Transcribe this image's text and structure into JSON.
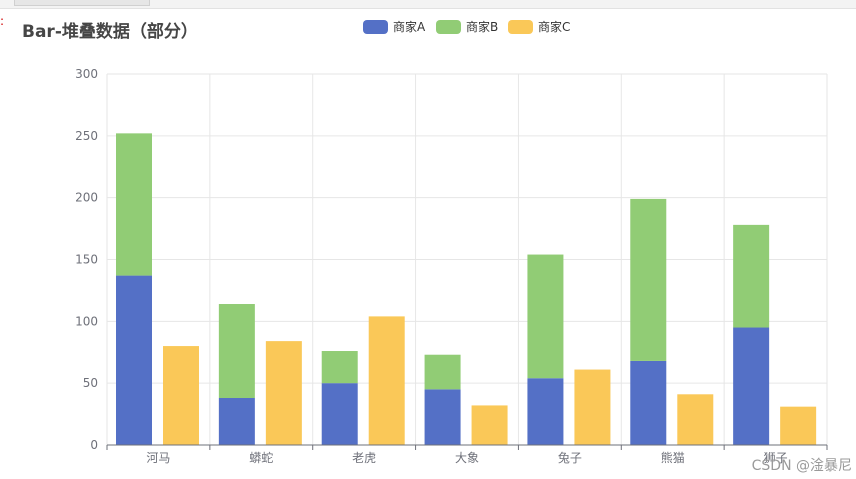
{
  "marker": ":",
  "title": "Bar-堆叠数据（部分）",
  "watermark": "CSDN @淦暴尼",
  "colors": {
    "A": "#5470c6",
    "B": "#91cc75",
    "C": "#fac858"
  },
  "chart_data": {
    "type": "bar",
    "categories": [
      "河马",
      "蟒蛇",
      "老虎",
      "大象",
      "兔子",
      "熊猫",
      "狮子"
    ],
    "series": [
      {
        "name": "商家A",
        "stack": "AB",
        "values": [
          137,
          38,
          50,
          45,
          54,
          68,
          95
        ]
      },
      {
        "name": "商家B",
        "stack": "AB",
        "values": [
          115,
          76,
          26,
          28,
          100,
          131,
          83
        ]
      },
      {
        "name": "商家C",
        "stack": "C",
        "values": [
          80,
          84,
          104,
          32,
          61,
          41,
          31
        ]
      }
    ],
    "ylim": [
      0,
      300
    ],
    "yticks": [
      0,
      50,
      100,
      150,
      200,
      250,
      300
    ],
    "grid": true,
    "legend_position": "top-center"
  }
}
